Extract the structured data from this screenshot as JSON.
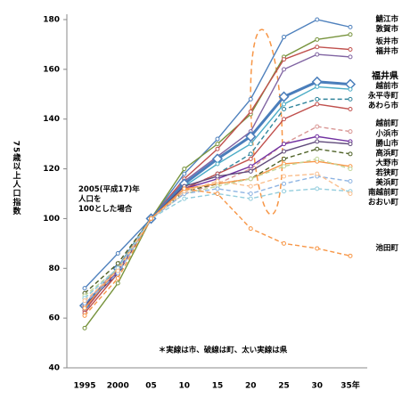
{
  "chart_data": {
    "type": "line",
    "ylabel": "75歳以上人口指数",
    "annotation": "2005(平成17)年\n人口を\n100とした場合",
    "footnote": "＊実線は市、破線は町、太い実線は県",
    "categories": [
      "1995",
      "2000",
      "05",
      "10",
      "15",
      "20",
      "25",
      "30",
      "35年"
    ],
    "ylim": [
      40,
      180
    ],
    "yticks": [
      40,
      60,
      80,
      100,
      120,
      140,
      160,
      180
    ],
    "series": [
      {
        "name": "鯖江市",
        "color": "#4f81bd",
        "values": [
          72,
          86,
          100,
          118,
          132,
          148,
          173,
          180,
          177
        ]
      },
      {
        "name": "敦賀市",
        "color": "#77933c",
        "values": [
          56,
          74,
          100,
          120,
          130,
          142,
          165,
          172,
          174
        ]
      },
      {
        "name": "坂井市",
        "color": "#c0504d",
        "values": [
          63,
          80,
          100,
          116,
          128,
          143,
          164,
          169,
          168
        ]
      },
      {
        "name": "福井市",
        "color": "#8064a2",
        "values": [
          65,
          78,
          100,
          115,
          125,
          135,
          160,
          166,
          165
        ]
      },
      {
        "name": "福井県",
        "color": "#4a7ebb",
        "bold": true,
        "values": [
          65,
          80,
          100,
          114,
          124,
          133,
          149,
          155,
          154
        ]
      },
      {
        "name": "越前市",
        "color": "#4bacc6",
        "values": [
          64,
          79,
          100,
          113,
          122,
          130,
          146,
          153,
          152
        ]
      },
      {
        "name": "永平寺町",
        "color": "#31859c",
        "dashed": true,
        "values": [
          68,
          80,
          100,
          112,
          118,
          126,
          144,
          148,
          148
        ]
      },
      {
        "name": "あわら市",
        "color": "#c0504d",
        "values": [
          62,
          78,
          100,
          112,
          118,
          124,
          140,
          146,
          144
        ]
      },
      {
        "name": "越前町",
        "color": "#d99694",
        "dashed": true,
        "values": [
          66,
          80,
          100,
          110,
          114,
          120,
          130,
          137,
          135
        ]
      },
      {
        "name": "小浜市",
        "color": "#7030a0",
        "values": [
          64,
          79,
          100,
          112,
          116,
          121,
          130,
          133,
          131
        ]
      },
      {
        "name": "勝山市",
        "color": "#604a7b",
        "values": [
          65,
          78,
          100,
          113,
          117,
          119,
          127,
          131,
          130
        ]
      },
      {
        "name": "高浜町",
        "color": "#4f6228",
        "dashed": true,
        "values": [
          70,
          82,
          100,
          111,
          114,
          116,
          124,
          128,
          126
        ]
      },
      {
        "name": "大野市",
        "color": "#f79646",
        "values": [
          64,
          80,
          100,
          112,
          114,
          116,
          122,
          123,
          121
        ]
      },
      {
        "name": "若狭町",
        "color": "#c3d69b",
        "dashed": true,
        "values": [
          69,
          80,
          100,
          110,
          113,
          116,
          121,
          124,
          120
        ]
      },
      {
        "name": "美浜町",
        "color": "#8eb4e3",
        "dashed": true,
        "values": [
          66,
          78,
          100,
          110,
          112,
          110,
          114,
          117,
          115
        ]
      },
      {
        "name": "南越前町",
        "color": "#93cddd",
        "dashed": true,
        "values": [
          68,
          80,
          100,
          108,
          110,
          108,
          111,
          112,
          111
        ]
      },
      {
        "name": "おおい町",
        "color": "#fac090",
        "dashed": true,
        "values": [
          67,
          79,
          100,
          111,
          115,
          113,
          117,
          118,
          110
        ]
      },
      {
        "name": "池田町",
        "color": "#f79646",
        "dashed": true,
        "values": [
          61,
          76,
          100,
          112,
          110,
          96,
          90,
          88,
          85
        ]
      }
    ]
  }
}
